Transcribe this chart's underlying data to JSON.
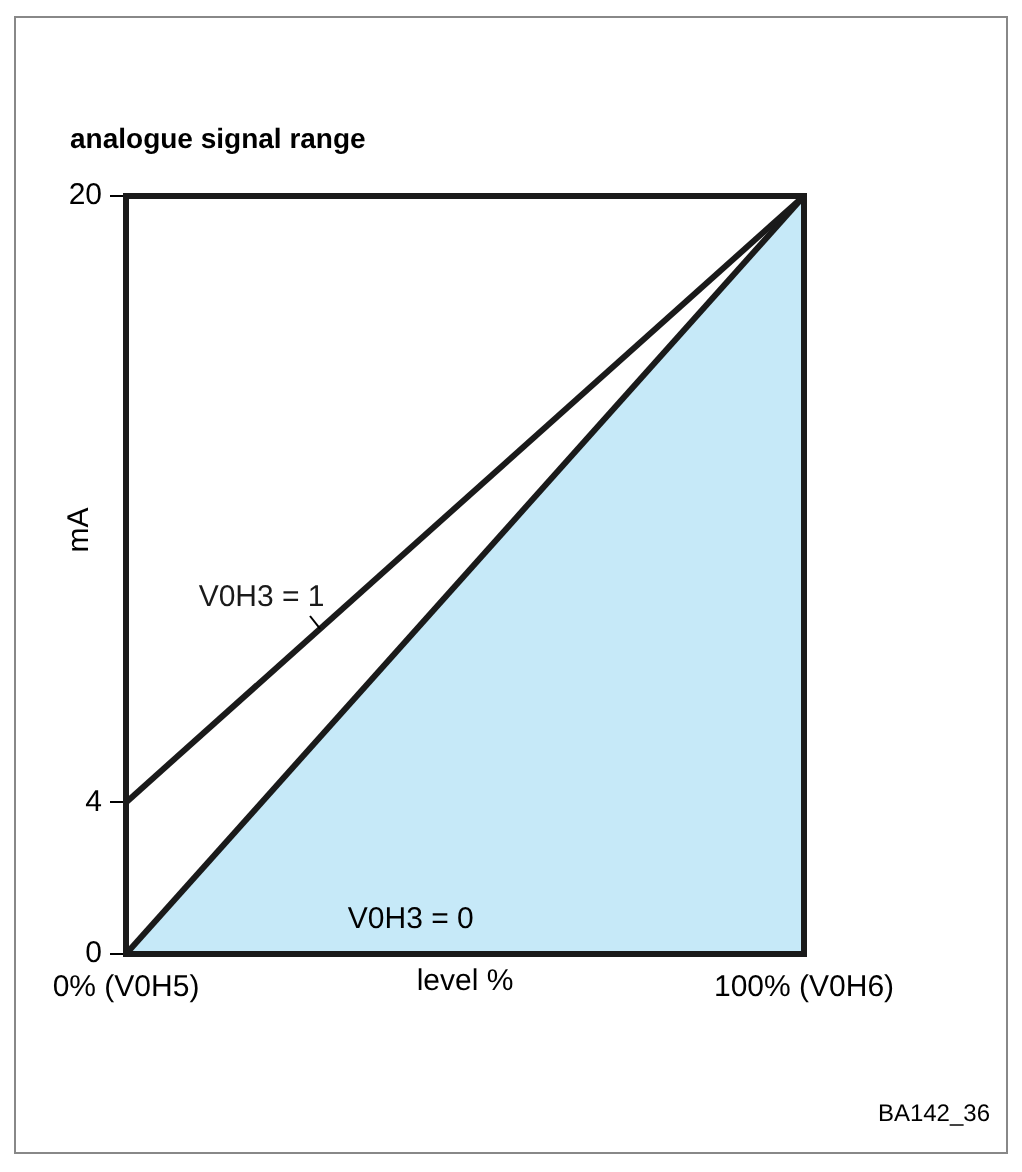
{
  "chart_data": {
    "type": "line",
    "title": "analogue signal range",
    "xlabel": "level %",
    "ylabel": "mA",
    "categories": [
      "0% (V0H5)",
      "100% (V0H6)"
    ],
    "series": [
      {
        "name": "V0H3 = 1",
        "type": "line",
        "color": "#1a1a1a",
        "values": [
          4,
          20
        ]
      },
      {
        "name": "V0H3 = 0",
        "type": "area",
        "color": "#c6e9f8",
        "values": [
          0,
          20
        ]
      }
    ],
    "ylim": [
      0,
      20
    ],
    "yticks": [
      0,
      4,
      20
    ],
    "grid": false,
    "legend": false,
    "marker": "none",
    "line_style": "solid",
    "annotations": [
      "BA142_36"
    ]
  }
}
